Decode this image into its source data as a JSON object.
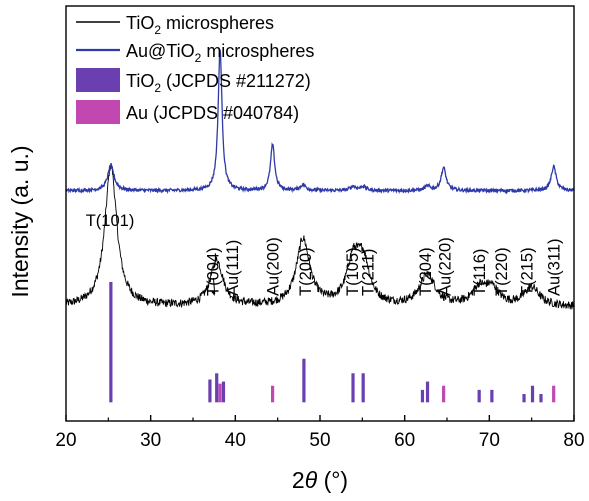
{
  "chart_data": {
    "type": "line",
    "title": "",
    "xlabel": "2θ (°)",
    "xlabel_parts": {
      "var": "2",
      "theta": "θ",
      "unit": " (°)"
    },
    "ylabel": "Intensity (a. u.)",
    "xlim": [
      20,
      80
    ],
    "x_ticks": [
      20,
      30,
      40,
      50,
      60,
      70,
      80
    ],
    "x_tick_labels": [
      "20",
      "30",
      "40",
      "50",
      "60",
      "70",
      "80"
    ],
    "y_ticks_shown": false,
    "grid": false,
    "legend_position": "top-left",
    "legend": [
      {
        "label": "TiO2 microspheres",
        "label_main": "TiO",
        "label_sub": "2",
        "label_rest": " microspheres",
        "style": "line",
        "color": "#000000"
      },
      {
        "label": "Au@TiO2 microspheres",
        "label_main": "Au@TiO",
        "label_sub": "2",
        "label_rest": " microspheres",
        "style": "line",
        "color": "#2e3aa8"
      },
      {
        "label": "TiO2 (JCPDS #211272)",
        "label_main": "TiO",
        "label_sub": "2",
        "label_rest": " (JCPDS #211272)",
        "style": "box",
        "color": "#6a3fb0"
      },
      {
        "label": "Au (JCPDS #040784)",
        "label_main": "Au (JCPDS #040784)",
        "label_sub": "",
        "label_rest": "",
        "style": "box",
        "color": "#c048b0"
      }
    ],
    "series": [
      {
        "name": "TiO2 microspheres",
        "color": "#000000",
        "baseline": 0.275,
        "noise": 0.01,
        "peaks": [
          {
            "x": 25.3,
            "h": 0.34,
            "w": 0.85
          },
          {
            "x": 37.8,
            "h": 0.11,
            "w": 0.9
          },
          {
            "x": 48.0,
            "h": 0.16,
            "w": 0.95
          },
          {
            "x": 53.9,
            "h": 0.1,
            "w": 0.9
          },
          {
            "x": 55.1,
            "h": 0.1,
            "w": 0.9
          },
          {
            "x": 62.7,
            "h": 0.075,
            "w": 1.1
          },
          {
            "x": 68.8,
            "h": 0.04,
            "w": 1.0
          },
          {
            "x": 70.3,
            "h": 0.04,
            "w": 1.0
          },
          {
            "x": 75.0,
            "h": 0.045,
            "w": 1.1
          }
        ]
      },
      {
        "name": "Au@TiO2 microspheres",
        "color": "#2e3aa8",
        "baseline": 0.555,
        "noise": 0.004,
        "peaks": [
          {
            "x": 25.3,
            "h": 0.06,
            "w": 0.45
          },
          {
            "x": 38.2,
            "h": 0.34,
            "w": 0.28
          },
          {
            "x": 44.4,
            "h": 0.11,
            "w": 0.3
          },
          {
            "x": 48.0,
            "h": 0.014,
            "w": 0.4
          },
          {
            "x": 53.9,
            "h": 0.01,
            "w": 0.4
          },
          {
            "x": 55.1,
            "h": 0.01,
            "w": 0.4
          },
          {
            "x": 62.7,
            "h": 0.01,
            "w": 0.4
          },
          {
            "x": 64.6,
            "h": 0.055,
            "w": 0.35
          },
          {
            "x": 77.6,
            "h": 0.058,
            "w": 0.35
          }
        ]
      }
    ],
    "reference_bars": [
      {
        "set": "TiO2 (JCPDS #211272)",
        "color": "#6a3fb0",
        "x": 25.3,
        "h": 0.29
      },
      {
        "set": "TiO2 (JCPDS #211272)",
        "color": "#6a3fb0",
        "x": 37.0,
        "h": 0.055
      },
      {
        "set": "TiO2 (JCPDS #211272)",
        "color": "#6a3fb0",
        "x": 37.8,
        "h": 0.07
      },
      {
        "set": "TiO2 (JCPDS #211272)",
        "color": "#6a3fb0",
        "x": 38.6,
        "h": 0.05
      },
      {
        "set": "TiO2 (JCPDS #211272)",
        "color": "#6a3fb0",
        "x": 48.1,
        "h": 0.105
      },
      {
        "set": "TiO2 (JCPDS #211272)",
        "color": "#6a3fb0",
        "x": 53.9,
        "h": 0.07
      },
      {
        "set": "TiO2 (JCPDS #211272)",
        "color": "#6a3fb0",
        "x": 55.1,
        "h": 0.07
      },
      {
        "set": "TiO2 (JCPDS #211272)",
        "color": "#6a3fb0",
        "x": 62.1,
        "h": 0.03
      },
      {
        "set": "TiO2 (JCPDS #211272)",
        "color": "#6a3fb0",
        "x": 62.7,
        "h": 0.05
      },
      {
        "set": "TiO2 (JCPDS #211272)",
        "color": "#6a3fb0",
        "x": 68.8,
        "h": 0.03
      },
      {
        "set": "TiO2 (JCPDS #211272)",
        "color": "#6a3fb0",
        "x": 70.3,
        "h": 0.03
      },
      {
        "set": "TiO2 (JCPDS #211272)",
        "color": "#6a3fb0",
        "x": 74.1,
        "h": 0.02
      },
      {
        "set": "TiO2 (JCPDS #211272)",
        "color": "#6a3fb0",
        "x": 75.1,
        "h": 0.04
      },
      {
        "set": "TiO2 (JCPDS #211272)",
        "color": "#6a3fb0",
        "x": 76.1,
        "h": 0.02
      },
      {
        "set": "Au (JCPDS #040784)",
        "color": "#c048b0",
        "x": 38.2,
        "h": 0.045
      },
      {
        "set": "Au (JCPDS #040784)",
        "color": "#c048b0",
        "x": 44.4,
        "h": 0.04
      },
      {
        "set": "Au (JCPDS #040784)",
        "color": "#c048b0",
        "x": 64.6,
        "h": 0.04
      },
      {
        "set": "Au (JCPDS #040784)",
        "color": "#c048b0",
        "x": 77.6,
        "h": 0.04
      }
    ],
    "annotations": [
      {
        "text": "T(101)",
        "x": 25.2,
        "rotate": false
      },
      {
        "text": "T(004)",
        "x": 37.3,
        "rotate": true,
        "arrow_to": 37.8
      },
      {
        "text": "Au(111)",
        "x": 39.6,
        "rotate": true
      },
      {
        "text": "Au(200)",
        "x": 44.4,
        "rotate": true
      },
      {
        "text": "T(200)",
        "x": 48.2,
        "rotate": true
      },
      {
        "text": "T(105)",
        "x": 53.8,
        "rotate": true
      },
      {
        "text": "T(211)",
        "x": 55.6,
        "rotate": true
      },
      {
        "text": "T(204)",
        "x": 62.4,
        "rotate": true
      },
      {
        "text": "Au(220)",
        "x": 64.7,
        "rotate": true
      },
      {
        "text": "T(116)",
        "x": 68.8,
        "rotate": true
      },
      {
        "text": "T(220)",
        "x": 71.4,
        "rotate": true
      },
      {
        "text": "T(215)",
        "x": 74.4,
        "rotate": true
      },
      {
        "text": "Au(311)",
        "x": 77.6,
        "rotate": true
      }
    ]
  }
}
